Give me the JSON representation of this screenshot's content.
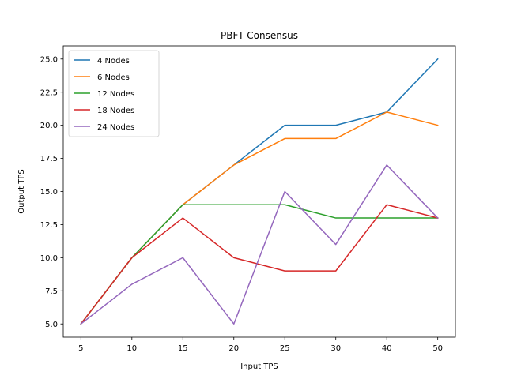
{
  "chart_data": {
    "type": "line",
    "title": "PBFT Consensus",
    "xlabel": "Input TPS",
    "ylabel": "Output TPS",
    "x": [
      "5",
      "10",
      "15",
      "20",
      "25",
      "30",
      "40",
      "50"
    ],
    "ylim": [
      4.0,
      26.0
    ],
    "yticks": [
      "5.0",
      "7.5",
      "10.0",
      "12.5",
      "15.0",
      "17.5",
      "20.0",
      "22.5",
      "25.0"
    ],
    "legend_position": "top-left",
    "grid": false,
    "series": [
      {
        "name": "4 Nodes",
        "color": "#1f77b4",
        "values": [
          5,
          10,
          14,
          17,
          20,
          20,
          21,
          25
        ]
      },
      {
        "name": "6 Nodes",
        "color": "#ff7f0e",
        "values": [
          5,
          10,
          14,
          17,
          19,
          19,
          21,
          20
        ]
      },
      {
        "name": "12 Nodes",
        "color": "#2ca02c",
        "values": [
          5,
          10,
          14,
          14,
          14,
          13,
          13,
          13
        ]
      },
      {
        "name": "18 Nodes",
        "color": "#d62728",
        "values": [
          5,
          10,
          13,
          10,
          9,
          9,
          14,
          13
        ]
      },
      {
        "name": "24 Nodes",
        "color": "#9467bd",
        "values": [
          5,
          8,
          10,
          5,
          15,
          11,
          17,
          13
        ]
      }
    ]
  }
}
